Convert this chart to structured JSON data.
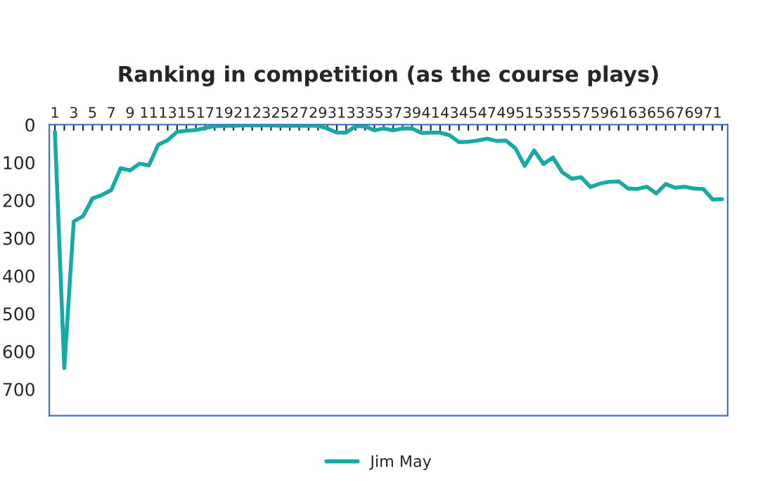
{
  "chart_data": {
    "type": "line",
    "title": "Ranking in competition (as the course plays)",
    "categories": [
      "1",
      null,
      "3",
      null,
      "5",
      null,
      "7",
      null,
      "9",
      null,
      "11",
      null,
      "13",
      null,
      "15",
      null,
      "17",
      null,
      "19",
      null,
      "21",
      null,
      "23",
      null,
      "25",
      null,
      "27",
      null,
      "29",
      null,
      "31",
      null,
      "33",
      null,
      "35",
      null,
      "37",
      null,
      "39",
      null,
      "41",
      null,
      "43",
      null,
      "45",
      null,
      "47",
      null,
      "49",
      null,
      "51",
      null,
      "53",
      null,
      "55",
      null,
      "57",
      null,
      "59",
      null,
      "61",
      null,
      "63",
      null,
      "65",
      null,
      "67",
      null,
      "69",
      null,
      "71",
      null
    ],
    "series": [
      {
        "name": "Jim May",
        "color": "#17a9a5",
        "values": [
          19,
          644,
          256,
          242,
          195,
          186,
          173,
          115,
          121,
          103,
          108,
          53,
          41,
          19,
          16,
          14,
          9,
          4,
          3,
          3,
          2,
          2,
          2,
          2,
          3,
          3,
          3,
          3,
          3,
          10,
          21,
          21,
          4,
          4,
          15,
          10,
          15,
          10,
          10,
          22,
          21,
          21,
          28,
          46,
          45,
          42,
          37,
          43,
          42,
          62,
          109,
          68,
          104,
          87,
          126,
          143,
          139,
          165,
          156,
          151,
          150,
          169,
          170,
          164,
          182,
          157,
          167,
          164,
          169,
          170,
          198,
          197
        ]
      }
    ],
    "ylim": [
      770,
      0
    ],
    "yticks": [
      0,
      100,
      200,
      300,
      400,
      500,
      600,
      700
    ],
    "grid": false,
    "legend": "bottom",
    "marker": "none",
    "line_style": "solid"
  }
}
